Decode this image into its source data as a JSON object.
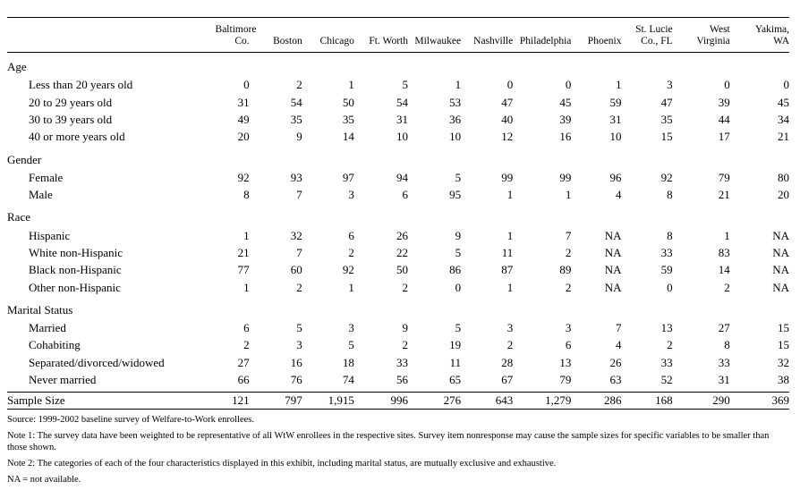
{
  "columns": [
    "Baltimore Co.",
    "Boston",
    "Chicago",
    "Ft. Worth",
    "Milwaukee",
    "Nashville",
    "Philadelphia",
    "Phoenix",
    "St. Lucie Co., FL",
    "West Virginia",
    "Yakima, WA"
  ],
  "column_lines": [
    [
      "Baltimore",
      "Co."
    ],
    [
      "",
      "Boston"
    ],
    [
      "",
      "Chicago"
    ],
    [
      "",
      "Ft. Worth"
    ],
    [
      "",
      "Milwaukee"
    ],
    [
      "",
      "Nashville"
    ],
    [
      "",
      "Philadelphia"
    ],
    [
      "",
      "Phoenix"
    ],
    [
      "St. Lucie",
      "Co., FL"
    ],
    [
      "West",
      "Virginia"
    ],
    [
      "Yakima,",
      "WA"
    ]
  ],
  "sections": [
    {
      "title": "Age",
      "rows": [
        {
          "label": "Less than 20 years old",
          "values": [
            "0",
            "2",
            "1",
            "5",
            "1",
            "0",
            "0",
            "1",
            "3",
            "0",
            "0"
          ]
        },
        {
          "label": "20 to 29 years old",
          "values": [
            "31",
            "54",
            "50",
            "54",
            "53",
            "47",
            "45",
            "59",
            "47",
            "39",
            "45"
          ]
        },
        {
          "label": "30 to 39 years old",
          "values": [
            "49",
            "35",
            "35",
            "31",
            "36",
            "40",
            "39",
            "31",
            "35",
            "44",
            "34"
          ]
        },
        {
          "label": "40 or more years old",
          "values": [
            "20",
            "9",
            "14",
            "10",
            "10",
            "12",
            "16",
            "10",
            "15",
            "17",
            "21"
          ]
        }
      ]
    },
    {
      "title": "Gender",
      "rows": [
        {
          "label": "Female",
          "values": [
            "92",
            "93",
            "97",
            "94",
            "5",
            "99",
            "99",
            "96",
            "92",
            "79",
            "80"
          ]
        },
        {
          "label": "Male",
          "values": [
            "8",
            "7",
            "3",
            "6",
            "95",
            "1",
            "1",
            "4",
            "8",
            "21",
            "20"
          ]
        }
      ]
    },
    {
      "title": "Race",
      "rows": [
        {
          "label": "Hispanic",
          "values": [
            "1",
            "32",
            "6",
            "26",
            "9",
            "1",
            "7",
            "NA",
            "8",
            "1",
            "NA"
          ]
        },
        {
          "label": "White non-Hispanic",
          "values": [
            "21",
            "7",
            "2",
            "22",
            "5",
            "11",
            "2",
            "NA",
            "33",
            "83",
            "NA"
          ]
        },
        {
          "label": "Black non-Hispanic",
          "values": [
            "77",
            "60",
            "92",
            "50",
            "86",
            "87",
            "89",
            "NA",
            "59",
            "14",
            "NA"
          ]
        },
        {
          "label": "Other non-Hispanic",
          "values": [
            "1",
            "2",
            "1",
            "2",
            "0",
            "1",
            "2",
            "NA",
            "0",
            "2",
            "NA"
          ]
        }
      ]
    },
    {
      "title": "Marital Status",
      "rows": [
        {
          "label": "Married",
          "values": [
            "6",
            "5",
            "3",
            "9",
            "5",
            "3",
            "3",
            "7",
            "13",
            "27",
            "15"
          ]
        },
        {
          "label": "Cohabiting",
          "values": [
            "2",
            "3",
            "5",
            "2",
            "19",
            "2",
            "6",
            "4",
            "2",
            "8",
            "15"
          ]
        },
        {
          "label": "Separated/divorced/widowed",
          "values": [
            "27",
            "16",
            "18",
            "33",
            "11",
            "28",
            "13",
            "26",
            "33",
            "33",
            "32"
          ]
        },
        {
          "label": "Never married",
          "values": [
            "66",
            "76",
            "74",
            "56",
            "65",
            "67",
            "79",
            "63",
            "52",
            "31",
            "38"
          ]
        }
      ]
    }
  ],
  "sample_size": {
    "label": "Sample Size",
    "values": [
      "121",
      "797",
      "1,915",
      "996",
      "276",
      "643",
      "1,279",
      "286",
      "168",
      "290",
      "369"
    ]
  },
  "notes": [
    "Source:  1999-2002 baseline survey of Welfare-to-Work enrollees.",
    "Note 1:  The survey data have been weighted to be representative of all WtW enrollees in the respective sites.  Survey item nonresponse may cause the sample sizes for specific variables to be smaller than those shown.",
    "Note 2:  The categories of each of the four characteristics displayed in this exhibit, including marital status, are mutually exclusive and exhaustive.",
    "NA = not available."
  ]
}
